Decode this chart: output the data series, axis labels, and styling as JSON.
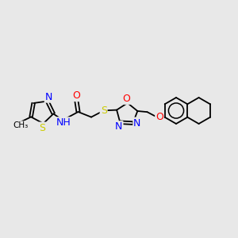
{
  "bg_color": "#e8e8e8",
  "atom_colors": {
    "N": "#0000ff",
    "O": "#ff0000",
    "S": "#cccc00",
    "C": "#000000"
  },
  "lw": 1.3,
  "fs": 9.0,
  "fs_small": 7.5
}
